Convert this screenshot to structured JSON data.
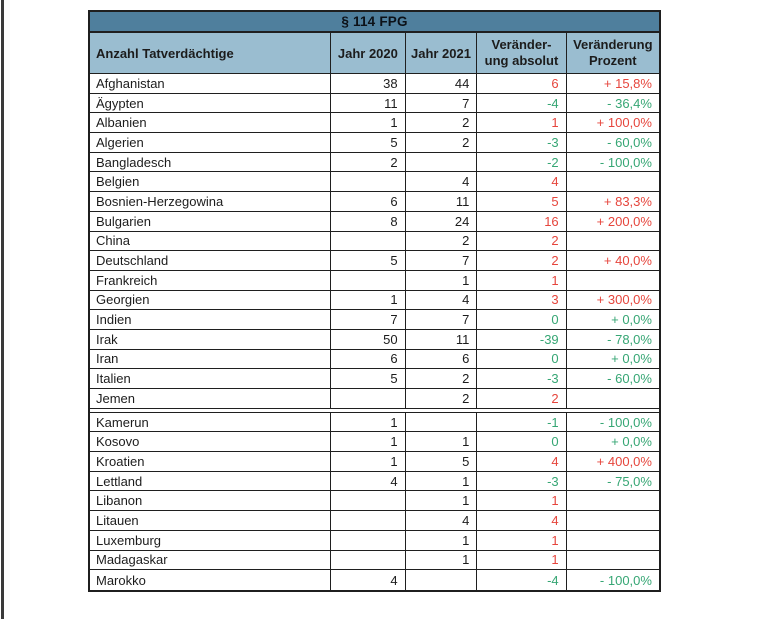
{
  "colors": {
    "title_bg": "#4f7f9d",
    "header_bg": "#9abdd0",
    "border": "#1f1f1f",
    "text": "#1c1c1c",
    "header_text": "#10151c",
    "title_text": "#0c1118",
    "increase": "#e6453c",
    "decrease": "#36a674",
    "page_edge": "#3a3a3a"
  },
  "table": {
    "title": "§ 114 FPG",
    "headers": [
      {
        "label": "Anzahl Tatverdächtige"
      },
      {
        "label": "Jahr 2020"
      },
      {
        "label": "Jahr 2021"
      },
      {
        "line1": "Veränder-",
        "line2": "ung absolut"
      },
      {
        "line1": "Veränderung",
        "line2": "Prozent"
      }
    ],
    "rows": [
      {
        "name": "Afghanistan",
        "y2020": "38",
        "y2021": "44",
        "abs": "6",
        "pct": "+ 15,8%",
        "trend": "up"
      },
      {
        "name": "Ägypten",
        "y2020": "11",
        "y2021": "7",
        "abs": "-4",
        "pct": "- 36,4%",
        "trend": "down"
      },
      {
        "name": "Albanien",
        "y2020": "1",
        "y2021": "2",
        "abs": "1",
        "pct": "+ 100,0%",
        "trend": "up"
      },
      {
        "name": "Algerien",
        "y2020": "5",
        "y2021": "2",
        "abs": "-3",
        "pct": "- 60,0%",
        "trend": "down"
      },
      {
        "name": "Bangladesch",
        "y2020": "2",
        "y2021": "",
        "abs": "-2",
        "pct": "- 100,0%",
        "trend": "down"
      },
      {
        "name": "Belgien",
        "y2020": "",
        "y2021": "4",
        "abs": "4",
        "pct": "",
        "trend": "up"
      },
      {
        "name": "Bosnien-Herzegowina",
        "y2020": "6",
        "y2021": "11",
        "abs": "5",
        "pct": "+ 83,3%",
        "trend": "up"
      },
      {
        "name": "Bulgarien",
        "y2020": "8",
        "y2021": "24",
        "abs": "16",
        "pct": "+ 200,0%",
        "trend": "up"
      },
      {
        "name": "China",
        "y2020": "",
        "y2021": "2",
        "abs": "2",
        "pct": "",
        "trend": "up"
      },
      {
        "name": "Deutschland",
        "y2020": "5",
        "y2021": "7",
        "abs": "2",
        "pct": "+ 40,0%",
        "trend": "up"
      },
      {
        "name": "Frankreich",
        "y2020": "",
        "y2021": "1",
        "abs": "1",
        "pct": "",
        "trend": "up"
      },
      {
        "name": "Georgien",
        "y2020": "1",
        "y2021": "4",
        "abs": "3",
        "pct": "+ 300,0%",
        "trend": "up"
      },
      {
        "name": "Indien",
        "y2020": "7",
        "y2021": "7",
        "abs": "0",
        "pct": "+ 0,0%",
        "trend": "down"
      },
      {
        "name": "Irak",
        "y2020": "50",
        "y2021": "11",
        "abs": "-39",
        "pct": "- 78,0%",
        "trend": "down"
      },
      {
        "name": "Iran",
        "y2020": "6",
        "y2021": "6",
        "abs": "0",
        "pct": "+ 0,0%",
        "trend": "down"
      },
      {
        "name": "Italien",
        "y2020": "5",
        "y2021": "2",
        "abs": "-3",
        "pct": "- 60,0%",
        "trend": "down"
      },
      {
        "name": "Jemen",
        "y2020": "",
        "y2021": "2",
        "abs": "2",
        "pct": "",
        "trend": "up"
      },
      {
        "name": "Kamerun",
        "y2020": "1",
        "y2021": "",
        "abs": "-1",
        "pct": "- 100,0%",
        "trend": "down",
        "page_break": true
      },
      {
        "name": "Kosovo",
        "y2020": "1",
        "y2021": "1",
        "abs": "0",
        "pct": "+ 0,0%",
        "trend": "down"
      },
      {
        "name": "Kroatien",
        "y2020": "1",
        "y2021": "5",
        "abs": "4",
        "pct": "+ 400,0%",
        "trend": "up"
      },
      {
        "name": "Lettland",
        "y2020": "4",
        "y2021": "1",
        "abs": "-3",
        "pct": "- 75,0%",
        "trend": "down"
      },
      {
        "name": "Libanon",
        "y2020": "",
        "y2021": "1",
        "abs": "1",
        "pct": "",
        "trend": "up"
      },
      {
        "name": "Litauen",
        "y2020": "",
        "y2021": "4",
        "abs": "4",
        "pct": "",
        "trend": "up"
      },
      {
        "name": "Luxemburg",
        "y2020": "",
        "y2021": "1",
        "abs": "1",
        "pct": "",
        "trend": "up"
      },
      {
        "name": "Madagaskar",
        "y2020": "",
        "y2021": "1",
        "abs": "1",
        "pct": "",
        "trend": "up"
      },
      {
        "name": "Marokko",
        "y2020": "4",
        "y2021": "",
        "abs": "-4",
        "pct": "- 100,0%",
        "trend": "down"
      }
    ]
  }
}
